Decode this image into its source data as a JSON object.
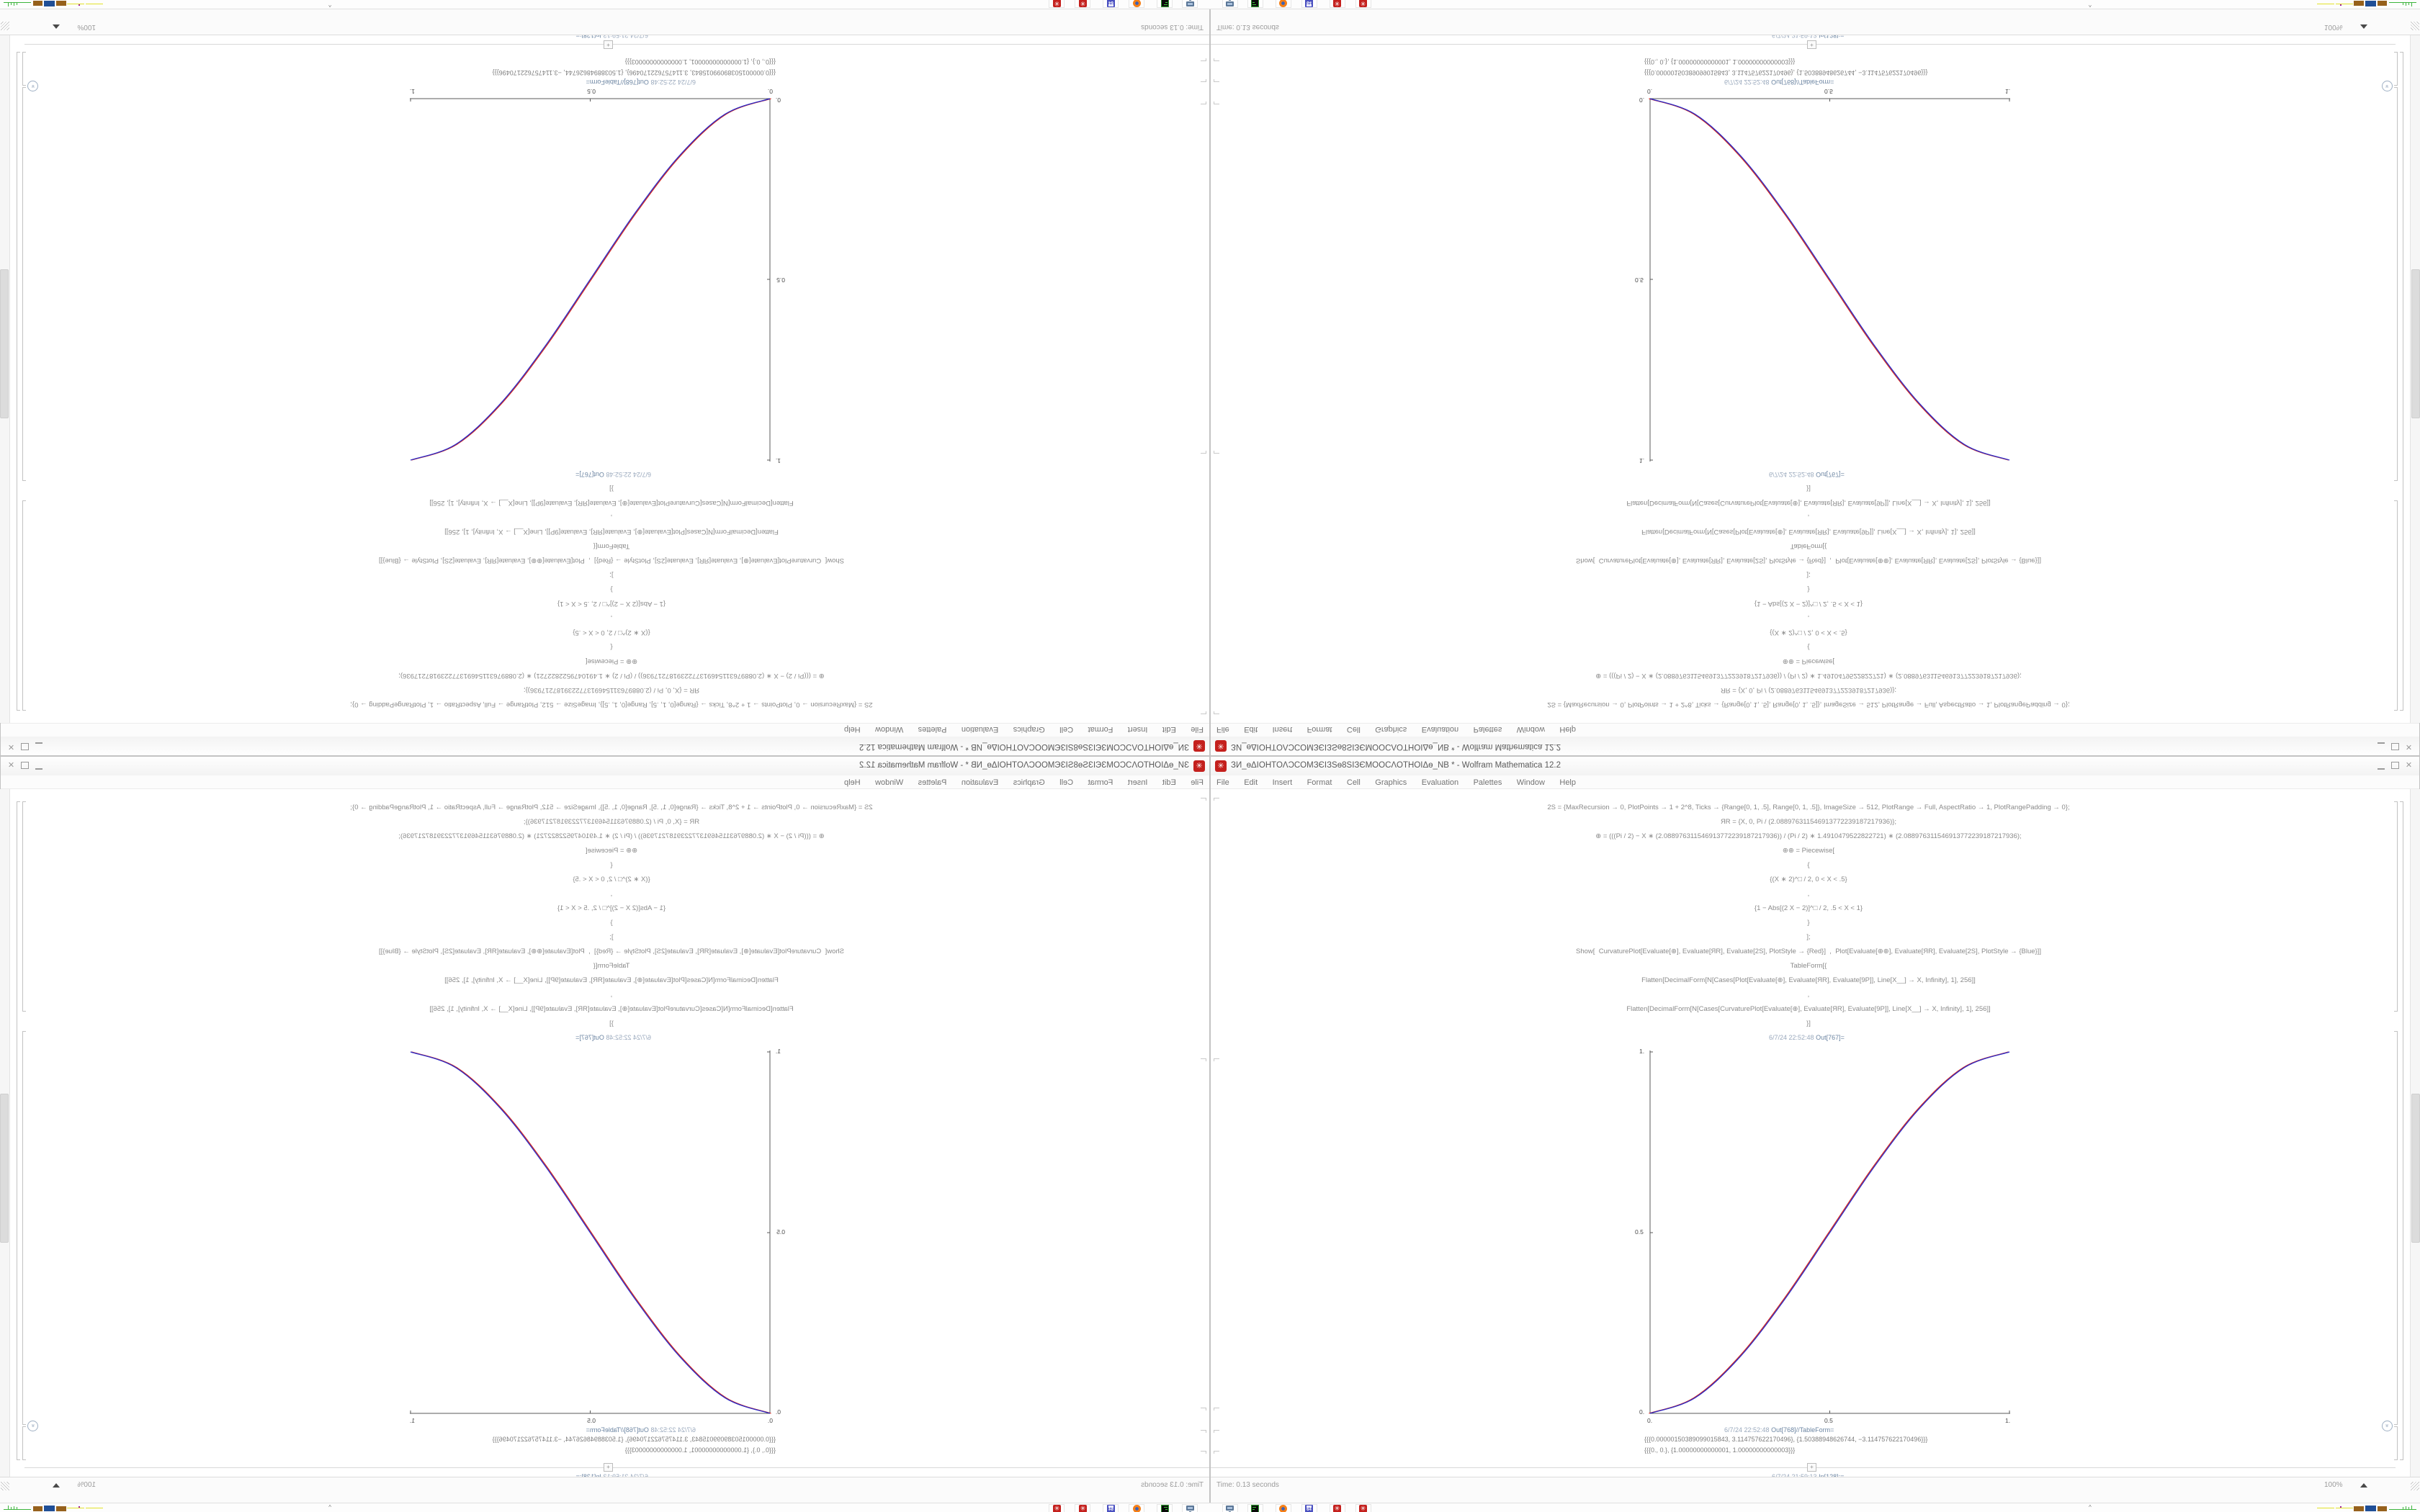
{
  "window": {
    "title": "ЗИ_ѳΔIOHTOΛϽCOMЗЄIЗЅѳ8ЅIЗЄMOOCΛOTHOIΔѳ_NB * - Wolfram Mathematica 12.2",
    "app_icon_glyph": "✳",
    "controls": {
      "minimize": "minimize",
      "maximize": "maximize",
      "close": "✕"
    }
  },
  "menu": {
    "items": [
      "File",
      "Edit",
      "Insert",
      "Format",
      "Cell",
      "Graphics",
      "Evaluation",
      "Palettes",
      "Window",
      "Help"
    ]
  },
  "notebook": {
    "input_code": {
      "lines": [
        "2S = {MaxRecursion → 0, PlotPoints → 1 + 2^8, Ticks → {Range[0, 1, .5], Range[0, 1, .5]}, ImageSize → 512, PlotRange → Full, AspectRatio → 1, PlotRangePadding → 0};",
        "ЯR = {X, 0, Pi / (2.088976311546913772239187217936)};",
        "⊕ = (((Pi / 2) − X ∗ (2.088976311546913772239187217936)) / (Pi / 2) ∗ 1.4910479522822721) ∗ (2.088976311546913772239187217936);",
        "⊕⊕ = Piecewise[",
        "{",
        "{(X ∗ 2)^□ / 2, 0 < X < .5}",
        ",",
        "{1 − Abs[(2 X − 2)]^□ / 2, .5 < X < 1}",
        "}",
        "];",
        "Show[  CurvaturePlot[Evaluate[⊕], Evaluate[ЯR], Evaluate[2S], PlotStyle → {Red}]  ,  Plot[Evaluate[⊕⊕], Evaluate[ЯR], Evaluate[2S], PlotStyle → {Blue}]]",
        "TableForm[{",
        "Flatten[DecimalForm[N[Cases[Plot[Evaluate[⊕], Evaluate[ЯR], Evaluate[9P]], Line[X__] → X, Infinity], 1], 256]]",
        ",",
        "Flatten[DecimalForm[N[Cases[CurvaturePlot[Evaluate[⊕], Evaluate[ЯR], Evaluate[9P]], Line[X__] → X, Infinity], 1], 256]]",
        "}]"
      ]
    },
    "out_plot": {
      "timestamp": "6/7/24 22:52:48",
      "label": "Out[767]="
    },
    "out_table": {
      "timestamp": "6/7/24 22:52:48",
      "label": "Out[768]//TableForm="
    },
    "table_output": {
      "rows": [
        "{{{0.00000150389099015843, 3.114757622170496}, {1.50388948626744, −3.114757622170496}}}",
        "{{{0., 0.}, {1.00000000000001, 1.00000000000003}}}"
      ]
    },
    "next_in": {
      "timestamp": "6/7/24 21:59:13",
      "label": "In[128]:="
    },
    "insert_plus_glyph": "+",
    "collapse_icon_glyph": "»",
    "status": {
      "time_text": "Time: 0.13 seconds",
      "zoom_level": "100%"
    }
  },
  "chart_data": {
    "type": "line",
    "title": "",
    "xlabel": "",
    "ylabel": "",
    "xlim": [
      0,
      1
    ],
    "ylim": [
      0,
      1
    ],
    "grid": false,
    "legend": "none",
    "x": [
      0,
      0.125,
      0.25,
      0.375,
      0.5,
      0.625,
      0.75,
      0.875,
      1
    ],
    "series": [
      {
        "name": "CurvaturePlot (Red)",
        "color": "#d42a20",
        "values": [
          0,
          0.043,
          0.156,
          0.316,
          0.5,
          0.684,
          0.844,
          0.957,
          1
        ]
      },
      {
        "name": "Plot (Blue)",
        "color": "#2a2ac8",
        "values": [
          0,
          0.043,
          0.156,
          0.316,
          0.5,
          0.684,
          0.844,
          0.957,
          1
        ]
      }
    ],
    "xticks": [
      "0.",
      "0.5",
      "1."
    ],
    "yticks": [
      "0.",
      "0.5",
      "1."
    ]
  },
  "taskbar": {
    "icons": [
      {
        "name": "screenshot-monitor-icon"
      },
      {
        "name": "terminal-icon"
      },
      {
        "name": "firefox-icon"
      },
      {
        "name": "floppy-64-icon",
        "label": "64"
      },
      {
        "name": "mathematica-spikey-icon",
        "glyph": "✳"
      },
      {
        "name": "mathematica-spikey-icon",
        "glyph": "✳"
      }
    ],
    "tray_expand_glyph": "^",
    "tray_text": "0.00 0.00 0.00 0.00   36   402 353   34   249 142   4.5   1.5   33   29   29553811"
  },
  "colors": {
    "accent_red": "#c4201d",
    "curve_red": "#d42a20",
    "curve_blue": "#2a2ac8",
    "label_blue_gray": "#6d86a3",
    "spark_yellow": "#e3e32a",
    "spark_brown": "#96611c",
    "spark_blue": "#1f4e96",
    "spark_green": "#3cb43c",
    "spark_purple": "#a020a0"
  }
}
